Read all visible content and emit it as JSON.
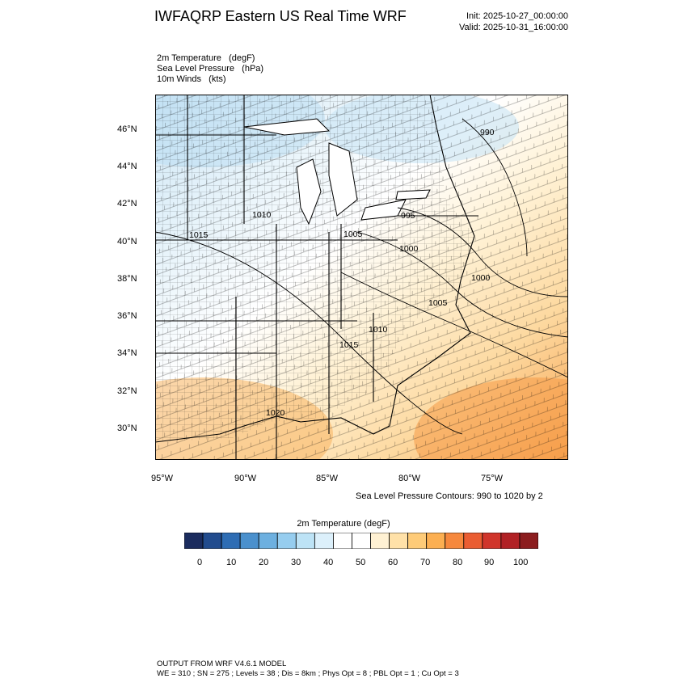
{
  "header": {
    "title": "IWFAQRP Eastern US Real Time WRF",
    "init": "Init: 2025-10-27_00:00:00",
    "valid": "Valid: 2025-10-31_16:00:00"
  },
  "fields": {
    "line1": "2m Temperature   (degF)",
    "line2": "Sea Level Pressure   (hPa)",
    "line3": "10m Winds   (kts)"
  },
  "axes": {
    "lat_labels": [
      "46°N",
      "44°N",
      "42°N",
      "40°N",
      "38°N",
      "36°N",
      "34°N",
      "32°N",
      "30°N"
    ],
    "lon_labels": [
      "95°W",
      "90°W",
      "85°W",
      "80°W",
      "75°W"
    ]
  },
  "contour_labels": [
    "990",
    "995",
    "1000",
    "1005",
    "1010",
    "1015",
    "1020",
    "1000",
    "1005",
    "1010",
    "1015"
  ],
  "contour_note": "Sea Level Pressure Contours: 990 to 1020 by 2",
  "colorbar": {
    "title": "2m Temperature  (degF)",
    "colors": [
      "#1b2c5e",
      "#224c8e",
      "#2e6db4",
      "#4a90cd",
      "#6db0e0",
      "#96cdef",
      "#bde3f6",
      "#dcf0fb",
      "#ffffff",
      "#ffffff",
      "#fff1d3",
      "#ffe1a8",
      "#fecb78",
      "#fcaf51",
      "#f6883d",
      "#ea5d32",
      "#d0352b",
      "#b12125",
      "#8c1d1f"
    ],
    "labels": [
      "0",
      "10",
      "20",
      "30",
      "40",
      "50",
      "60",
      "70",
      "80",
      "90",
      "100"
    ]
  },
  "footer": {
    "line1": "OUTPUT FROM WRF V4.6.1 MODEL",
    "line2": "WE = 310 ; SN = 275 ; Levels = 38 ; Dis = 8km ; Phys Opt = 8 ; PBL Opt = 1 ; Cu Opt = 3"
  }
}
